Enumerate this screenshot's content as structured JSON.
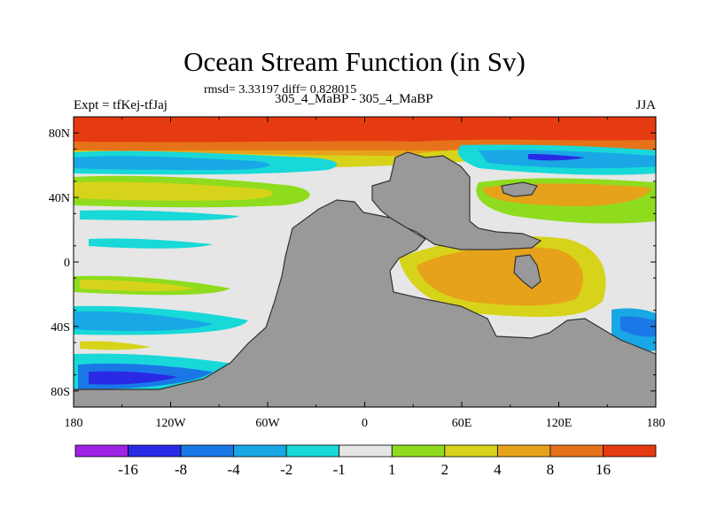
{
  "title": "Ocean Stream Function (in Sv)",
  "stats_line": "rmsd= 3.33197 diff= 0.828015",
  "left_header": "Expt = tfKej-tfJaj",
  "center_header": "305_4_MaBP - 305_4_MaBP",
  "right_header": "JJA",
  "chart_data": {
    "type": "heatmap",
    "title": "Ocean Stream Function (in Sv)",
    "units": "Sv",
    "x_axis": {
      "range": [
        -180,
        180
      ],
      "ticks": [
        -180,
        -120,
        -60,
        0,
        60,
        120,
        180
      ],
      "tick_labels": [
        "180",
        "120W",
        "60W",
        "0",
        "60E",
        "120E",
        "180"
      ]
    },
    "y_axis": {
      "range": [
        -90,
        90
      ],
      "ticks": [
        80,
        40,
        0,
        -40,
        -80
      ],
      "tick_labels": [
        "80N",
        "40N",
        "0",
        "40S",
        "80S"
      ]
    },
    "colorbar": {
      "labels": [
        "-16",
        "-8",
        "-4",
        "-2",
        "-1",
        "1",
        "2",
        "4",
        "8",
        "16"
      ],
      "levels": [
        -16,
        -8,
        -4,
        -2,
        -1,
        1,
        2,
        4,
        8,
        16
      ],
      "colors": [
        "#9f22e6",
        "#2a2ae6",
        "#1a78e6",
        "#19a7e6",
        "#18d8d8",
        "#e6e6e6",
        "#8fdc1e",
        "#d6d31a",
        "#e6a21a",
        "#e6721a",
        "#e63a10"
      ]
    },
    "land_color": "#999999",
    "grid": false
  }
}
